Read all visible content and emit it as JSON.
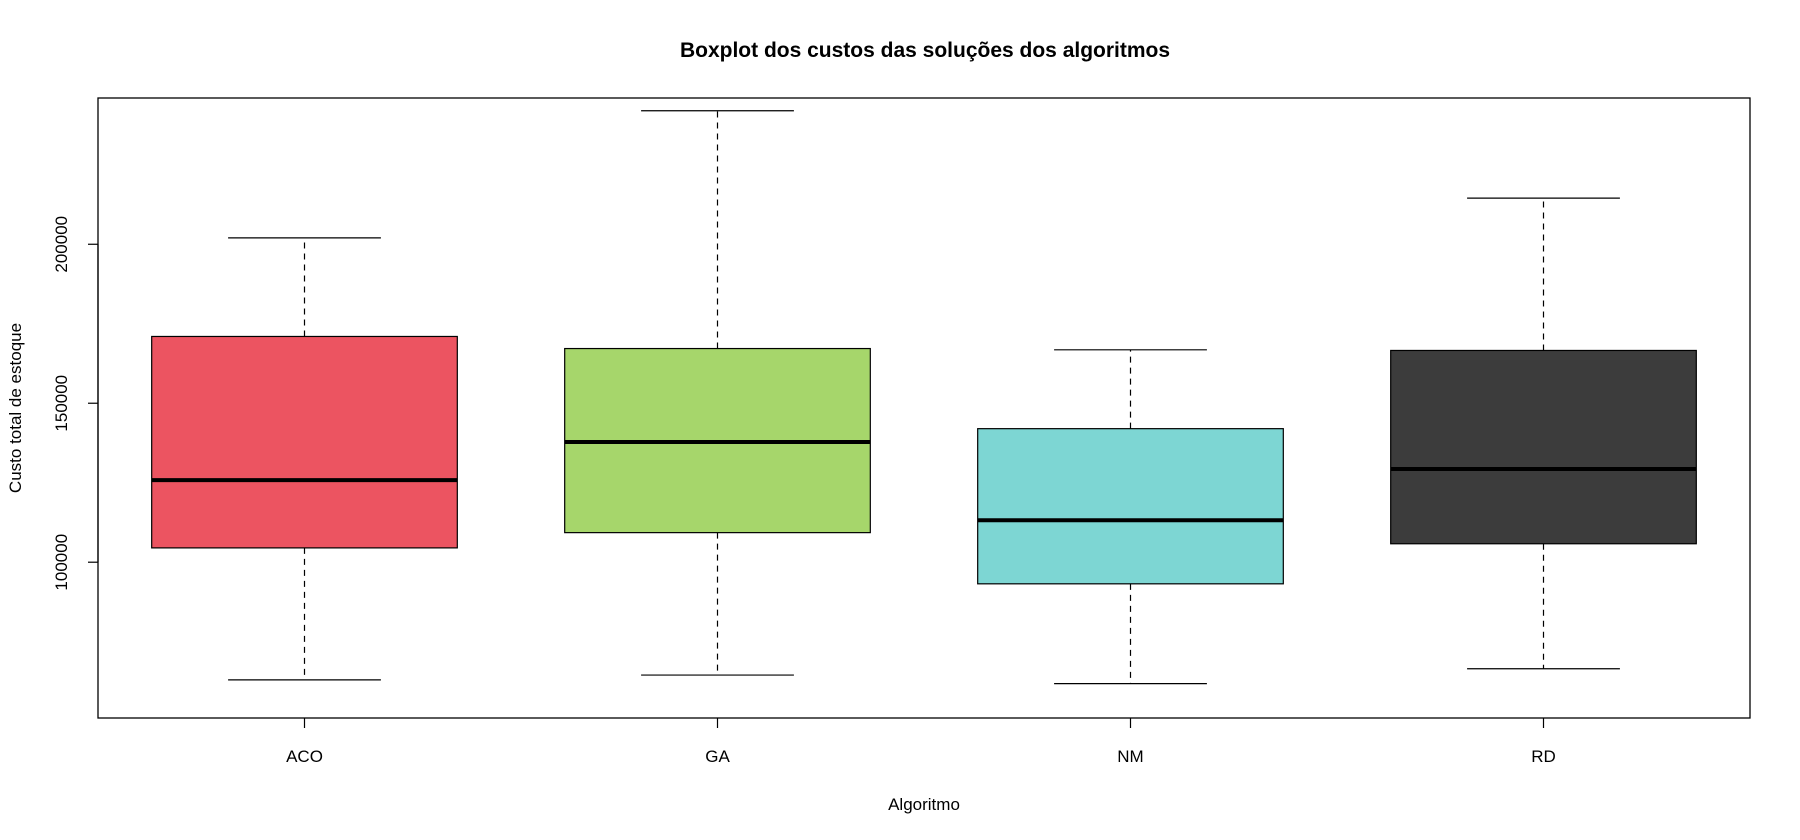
{
  "chart_data": {
    "type": "boxplot",
    "title": "Boxplot dos custos das soluções dos algoritmos",
    "xlabel": "Algoritmo",
    "ylabel": "Custo total de estoque",
    "ylim": [
      51000,
      246000
    ],
    "yticks": [
      100000,
      150000,
      200000
    ],
    "grid": false,
    "legend": "none",
    "categories": [
      "ACO",
      "GA",
      "NM",
      "RD"
    ],
    "series": [
      {
        "category": "ACO",
        "min": 63000,
        "q1": 104500,
        "median": 125800,
        "q3": 171000,
        "max": 202000,
        "color": "#EC5461"
      },
      {
        "category": "GA",
        "min": 64500,
        "q1": 109300,
        "median": 137800,
        "q3": 167200,
        "max": 242000,
        "color": "#A6D66B"
      },
      {
        "category": "NM",
        "min": 61800,
        "q1": 93200,
        "median": 113200,
        "q3": 142000,
        "max": 166800,
        "color": "#7DD6D3"
      },
      {
        "category": "RD",
        "min": 66500,
        "q1": 105800,
        "median": 129300,
        "q3": 166600,
        "max": 214500,
        "color": "#3C3C3C"
      }
    ]
  }
}
